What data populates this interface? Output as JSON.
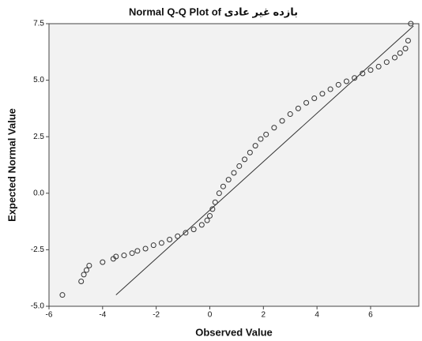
{
  "chart_data": {
    "type": "scatter",
    "title": "Normal Q-Q Plot of بازده غیر عادی",
    "x_label": "Observed Value",
    "y_label": "Expected Normal Value",
    "xlim": [
      -6,
      7.8
    ],
    "ylim": [
      -5,
      7.5
    ],
    "xticks": [
      -6,
      -4,
      -2,
      0,
      2,
      4,
      6
    ],
    "yticks": [
      {
        "value": -5,
        "label": "-5.0"
      },
      {
        "value": -2.5,
        "label": "-2.5"
      },
      {
        "value": 0,
        "label": "0.0"
      },
      {
        "value": 2.5,
        "label": "2.5"
      },
      {
        "value": 5,
        "label": "5.0"
      },
      {
        "value": 7.5,
        "label": "7.5"
      }
    ],
    "reference_line": {
      "x": [
        -3.5,
        7.6
      ],
      "y": [
        -4.5,
        7.4
      ]
    },
    "series": [
      {
        "color": "#333333",
        "x": [
          -5.5,
          -4.8,
          -4.7,
          -4.6,
          -4.5,
          -4.0,
          -3.6,
          -3.5,
          -3.2,
          -2.9,
          -2.7,
          -2.4,
          -2.1,
          -1.8,
          -1.5,
          -1.2,
          -0.9,
          -0.6,
          -0.3,
          -0.1,
          0,
          0.1,
          0.2,
          0.35,
          0.5,
          0.7,
          0.9,
          1.1,
          1.3,
          1.5,
          1.7,
          1.9,
          2.1,
          2.4,
          2.7,
          3.0,
          3.3,
          3.6,
          3.9,
          4.2,
          4.5,
          4.8,
          5.1,
          5.4,
          5.7,
          6.0,
          6.3,
          6.6,
          6.9,
          7.1,
          7.3,
          7.4,
          7.5
        ],
        "values": [
          -4.5,
          -3.9,
          -3.6,
          -3.4,
          -3.2,
          -3.05,
          -2.9,
          -2.8,
          -2.75,
          -2.65,
          -2.55,
          -2.45,
          -2.3,
          -2.2,
          -2.05,
          -1.9,
          -1.75,
          -1.6,
          -1.4,
          -1.2,
          -1.0,
          -0.7,
          -0.4,
          0,
          0.3,
          0.6,
          0.9,
          1.2,
          1.5,
          1.8,
          2.1,
          2.4,
          2.6,
          2.9,
          3.2,
          3.5,
          3.75,
          4.0,
          4.2,
          4.4,
          4.6,
          4.8,
          4.95,
          5.1,
          5.3,
          5.45,
          5.6,
          5.8,
          6.0,
          6.2,
          6.4,
          6.75,
          7.5
        ]
      }
    ]
  }
}
